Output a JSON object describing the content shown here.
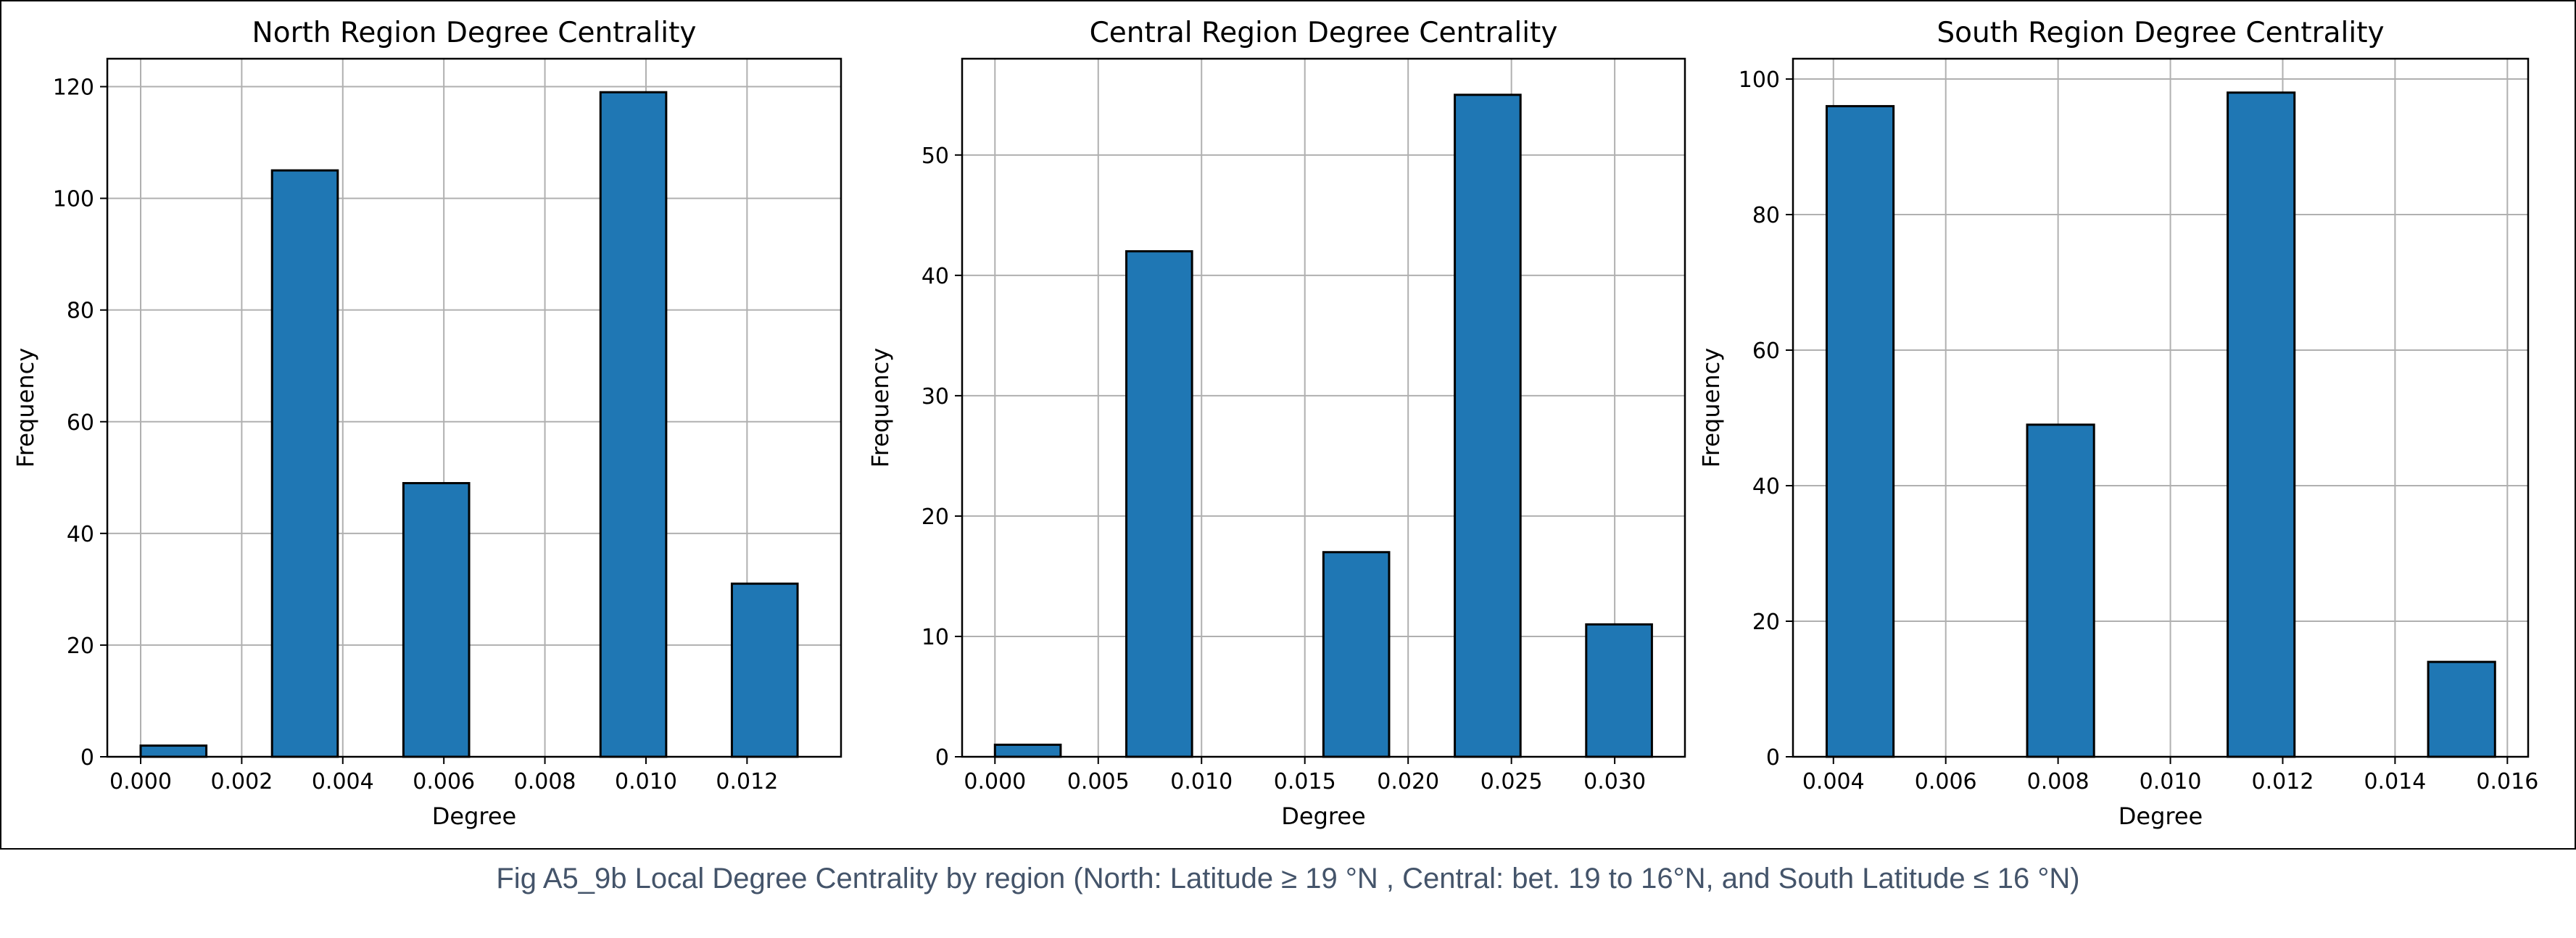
{
  "caption": "Fig A5_9b Local Degree Centrality by region (North: Latitude ≥ 19 °N , Central: bet. 19 to 16°N, and South Latitude ≤ 16 °N)",
  "colors": {
    "bar": "#1f77b4",
    "edge": "#000000",
    "grid": "#b0b0b0",
    "caption": "#44546a"
  },
  "chart_data": [
    {
      "type": "bar",
      "title": "North Region Degree Centrality",
      "xlabel": "Degree",
      "ylabel": "Frequency",
      "xlim": [
        -0.00066,
        0.01386
      ],
      "ylim": [
        0,
        125
      ],
      "xticks": [
        0.0,
        0.002,
        0.004,
        0.006,
        0.008,
        0.01,
        0.012
      ],
      "xtick_labels": [
        "0.000",
        "0.002",
        "0.004",
        "0.006",
        "0.008",
        "0.010",
        "0.012"
      ],
      "yticks": [
        0,
        20,
        40,
        60,
        80,
        100,
        120
      ],
      "ytick_labels": [
        "0",
        "20",
        "40",
        "60",
        "80",
        "100",
        "120"
      ],
      "grid": true,
      "bins": [
        {
          "start": 0.0,
          "end": 0.0013,
          "count": 2
        },
        {
          "start": 0.0026,
          "end": 0.0039,
          "count": 105
        },
        {
          "start": 0.0052,
          "end": 0.0065,
          "count": 49
        },
        {
          "start": 0.0091,
          "end": 0.0104,
          "count": 119
        },
        {
          "start": 0.0117,
          "end": 0.013,
          "count": 31
        }
      ]
    },
    {
      "type": "bar",
      "title": "Central Region Degree Centrality",
      "xlabel": "Degree",
      "ylabel": "Frequency",
      "xlim": [
        -0.00159,
        0.0334
      ],
      "ylim": [
        0,
        58
      ],
      "xticks": [
        0.0,
        0.005,
        0.01,
        0.015,
        0.02,
        0.025,
        0.03
      ],
      "xtick_labels": [
        "0.000",
        "0.005",
        "0.010",
        "0.015",
        "0.020",
        "0.025",
        "0.030"
      ],
      "yticks": [
        0,
        10,
        20,
        30,
        40,
        50
      ],
      "ytick_labels": [
        "0",
        "10",
        "20",
        "30",
        "40",
        "50"
      ],
      "grid": true,
      "bins": [
        {
          "start": 0.0,
          "end": 0.00318,
          "count": 1
        },
        {
          "start": 0.00636,
          "end": 0.00954,
          "count": 42
        },
        {
          "start": 0.0159,
          "end": 0.01908,
          "count": 17
        },
        {
          "start": 0.02226,
          "end": 0.02544,
          "count": 55
        },
        {
          "start": 0.02862,
          "end": 0.0318,
          "count": 11
        }
      ]
    },
    {
      "type": "bar",
      "title": "South Region Degree Centrality",
      "xlabel": "Degree",
      "ylabel": "Frequency",
      "xlim": [
        0.00328,
        0.01637
      ],
      "ylim": [
        0,
        103
      ],
      "xticks": [
        0.004,
        0.006,
        0.008,
        0.01,
        0.012,
        0.014,
        0.016
      ],
      "xtick_labels": [
        "0.004",
        "0.006",
        "0.008",
        "0.010",
        "0.012",
        "0.014",
        "0.016"
      ],
      "yticks": [
        0,
        20,
        40,
        60,
        80,
        100
      ],
      "ytick_labels": [
        "0",
        "20",
        "40",
        "60",
        "80",
        "100"
      ],
      "grid": true,
      "bins": [
        {
          "start": 0.00388,
          "end": 0.00507,
          "count": 96
        },
        {
          "start": 0.00745,
          "end": 0.00864,
          "count": 49
        },
        {
          "start": 0.01102,
          "end": 0.01221,
          "count": 98
        },
        {
          "start": 0.01459,
          "end": 0.01578,
          "count": 14
        }
      ]
    }
  ]
}
